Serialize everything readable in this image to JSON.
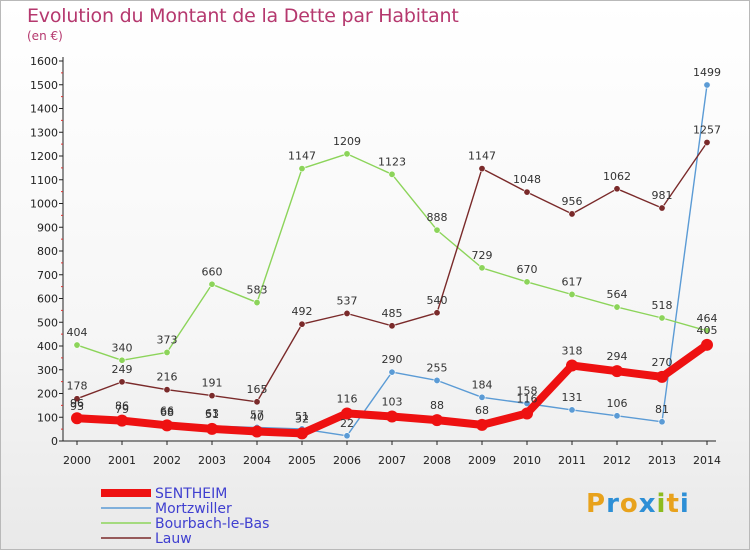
{
  "title": "Evolution du Montant de la Dette par Habitant",
  "unit_label": "(en €)",
  "logo": {
    "letters": [
      "P",
      "r",
      "o",
      "x",
      "i",
      "t",
      "i"
    ],
    "colors": [
      "#e8a21c",
      "#2d8fd6",
      "#e8a21c",
      "#2d8fd6",
      "#8dbb1f",
      "#e8a21c",
      "#2d8fd6"
    ]
  },
  "chart_data": {
    "type": "line",
    "title": "Evolution du Montant de la Dette par Habitant",
    "ylabel": "(en €)",
    "x": [
      2000,
      2001,
      2002,
      2003,
      2004,
      2005,
      2006,
      2007,
      2008,
      2009,
      2010,
      2011,
      2012,
      2013,
      2014
    ],
    "ylim": [
      0,
      1600
    ],
    "yticks": [
      0,
      100,
      200,
      300,
      400,
      500,
      600,
      700,
      800,
      900,
      1000,
      1100,
      1200,
      1300,
      1400,
      1500,
      1600
    ],
    "grid": false,
    "legend": "bottom-left",
    "series": [
      {
        "name": "Mortzwiller",
        "color": "#5b9bd5",
        "values": [
          93,
          79,
          68,
          63,
          57,
          51,
          22,
          290,
          255,
          184,
          158,
          131,
          106,
          81,
          1499
        ],
        "labels": [
          "93",
          "79",
          "68",
          "63",
          "57",
          "51",
          "22",
          "290",
          "255",
          "184",
          "158",
          "131",
          "106",
          "81",
          "1499"
        ]
      },
      {
        "name": "Bourbach-le-Bas",
        "color": "#8cd45a",
        "values": [
          404,
          340,
          373,
          660,
          583,
          1147,
          1209,
          1123,
          888,
          729,
          670,
          617,
          564,
          518,
          464
        ],
        "labels": [
          "404",
          "340",
          "373",
          "660",
          "583",
          "1147",
          "1209",
          "1123",
          "888",
          "729",
          "670",
          "617",
          "564",
          "518",
          "464"
        ]
      },
      {
        "name": "Lauw",
        "color": "#7a2a2a",
        "values": [
          178,
          249,
          216,
          191,
          165,
          492,
          537,
          485,
          540,
          1147,
          1048,
          956,
          1062,
          981,
          1257
        ],
        "labels": [
          "178",
          "249",
          "216",
          "191",
          "165",
          "492",
          "537",
          "485",
          "540",
          "1147",
          "1048",
          "956",
          "1062",
          "981",
          "1257"
        ]
      },
      {
        "name": "SENTHEIM",
        "color": "#ee1111",
        "values": [
          96,
          86,
          66,
          51,
          40,
          32,
          116,
          103,
          88,
          68,
          116,
          318,
          294,
          270,
          405
        ],
        "labels": [
          "96",
          "86",
          "66",
          "51",
          "40",
          "32",
          "116",
          "103",
          "88",
          "68",
          "116",
          "318",
          "294",
          "270",
          "405"
        ]
      }
    ],
    "legend_entries": [
      "SENTHEIM",
      "Mortzwiller",
      "Bourbach-le-Bas",
      "Lauw"
    ]
  }
}
